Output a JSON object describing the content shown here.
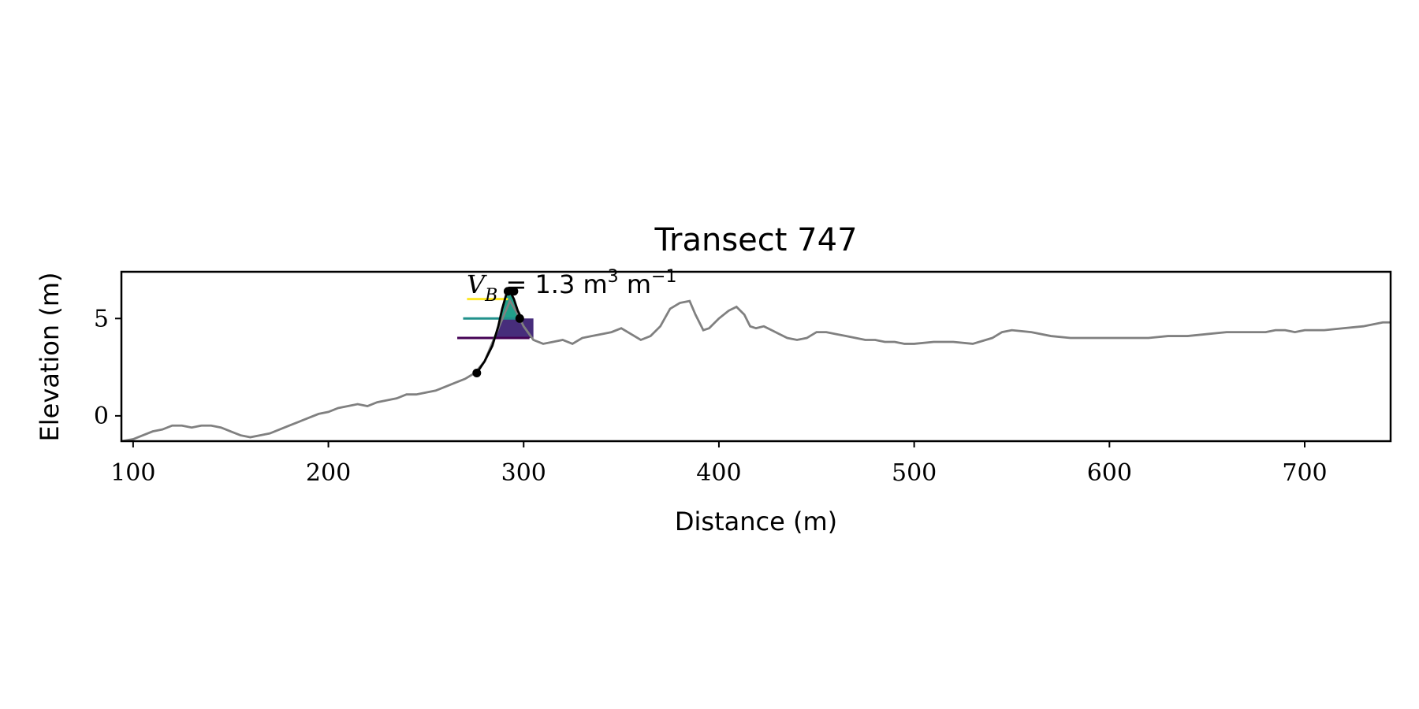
{
  "chart_data": {
    "type": "line",
    "title": "Transect 747",
    "xlabel": "Distance (m)",
    "ylabel": "Elevation (m)",
    "xlim": [
      94,
      744
    ],
    "ylim": [
      -1.3,
      7.4
    ],
    "xticks": [
      100,
      200,
      300,
      400,
      500,
      600,
      700
    ],
    "yticks": [
      0,
      5
    ],
    "grid": false,
    "annotation": {
      "text_var": "V",
      "text_sub": "B",
      "text_rest": " = 1.3 m",
      "text_sup1": "3",
      "text_m": " m",
      "text_sup2": "−1",
      "x": 270,
      "y": 6.5
    },
    "colors": {
      "profile": "#808080",
      "dune_fit": "#000000",
      "fill_light": "#d3d3d3",
      "level_high": "#fde725",
      "level_mid": "#21918c",
      "level_low": "#440154",
      "fill_mid": "#21a08a",
      "fill_low": "#472d7b"
    },
    "series": [
      {
        "role": "profile",
        "x": [
          94,
          100,
          105,
          110,
          115,
          120,
          125,
          130,
          135,
          140,
          145,
          150,
          155,
          160,
          165,
          170,
          175,
          180,
          185,
          190,
          195,
          200,
          205,
          210,
          215,
          220,
          225,
          230,
          235,
          240,
          245,
          250,
          255,
          260,
          265,
          270,
          275,
          280,
          285,
          290,
          293,
          296,
          300,
          305,
          310,
          315,
          320,
          325,
          330,
          335,
          340,
          345,
          350,
          355,
          360,
          365,
          370,
          375,
          380,
          385,
          388,
          392,
          395,
          400,
          405,
          409,
          413,
          416,
          419,
          423,
          427,
          431,
          435,
          440,
          445,
          450,
          455,
          460,
          465,
          470,
          475,
          480,
          485,
          490,
          495,
          500,
          510,
          520,
          530,
          540,
          545,
          550,
          560,
          570,
          580,
          590,
          600,
          610,
          620,
          630,
          640,
          650,
          660,
          670,
          680,
          685,
          690,
          695,
          700,
          710,
          720,
          730,
          735,
          740,
          744
        ],
        "y": [
          -1.3,
          -1.2,
          -1.0,
          -0.8,
          -0.7,
          -0.5,
          -0.5,
          -0.6,
          -0.5,
          -0.5,
          -0.6,
          -0.8,
          -1.0,
          -1.1,
          -1.0,
          -0.9,
          -0.7,
          -0.5,
          -0.3,
          -0.1,
          0.1,
          0.2,
          0.4,
          0.5,
          0.6,
          0.5,
          0.7,
          0.8,
          0.9,
          1.1,
          1.1,
          1.2,
          1.3,
          1.5,
          1.7,
          1.9,
          2.2,
          2.8,
          4.0,
          5.2,
          5.9,
          5.4,
          4.6,
          3.9,
          3.7,
          3.8,
          3.9,
          3.7,
          4.0,
          4.1,
          4.2,
          4.3,
          4.5,
          4.2,
          3.9,
          4.1,
          4.6,
          5.5,
          5.8,
          5.9,
          5.2,
          4.4,
          4.5,
          5.0,
          5.4,
          5.6,
          5.2,
          4.6,
          4.5,
          4.6,
          4.4,
          4.2,
          4.0,
          3.9,
          4.0,
          4.3,
          4.3,
          4.2,
          4.1,
          4.0,
          3.9,
          3.9,
          3.8,
          3.8,
          3.7,
          3.7,
          3.8,
          3.8,
          3.7,
          4.0,
          4.3,
          4.4,
          4.3,
          4.1,
          4.0,
          4.0,
          4.0,
          4.0,
          4.0,
          4.1,
          4.1,
          4.2,
          4.3,
          4.3,
          4.3,
          4.4,
          4.4,
          4.3,
          4.4,
          4.4,
          4.5,
          4.6,
          4.7,
          4.8,
          4.8
        ]
      },
      {
        "role": "dune_fit",
        "x": [
          276,
          280,
          284,
          287,
          289,
          291,
          293,
          295,
          297,
          299
        ],
        "y": [
          2.2,
          2.8,
          3.6,
          4.6,
          5.5,
          6.2,
          6.4,
          6.0,
          5.4,
          5.0
        ]
      }
    ],
    "points": [
      {
        "name": "dune-toe",
        "x": 276,
        "y": 2.2
      },
      {
        "name": "dune-crest-1",
        "x": 292,
        "y": 6.4
      },
      {
        "name": "dune-crest-2",
        "x": 295,
        "y": 6.4
      },
      {
        "name": "dune-heel",
        "x": 298,
        "y": 5.0
      }
    ],
    "levels": [
      {
        "name": "level-high",
        "y": 6.0,
        "x0": 271,
        "x1": 292
      },
      {
        "name": "level-mid",
        "y": 5.0,
        "x0": 269,
        "x1": 297
      },
      {
        "name": "level-low",
        "y": 4.0,
        "x0": 266,
        "x1": 303
      }
    ]
  }
}
